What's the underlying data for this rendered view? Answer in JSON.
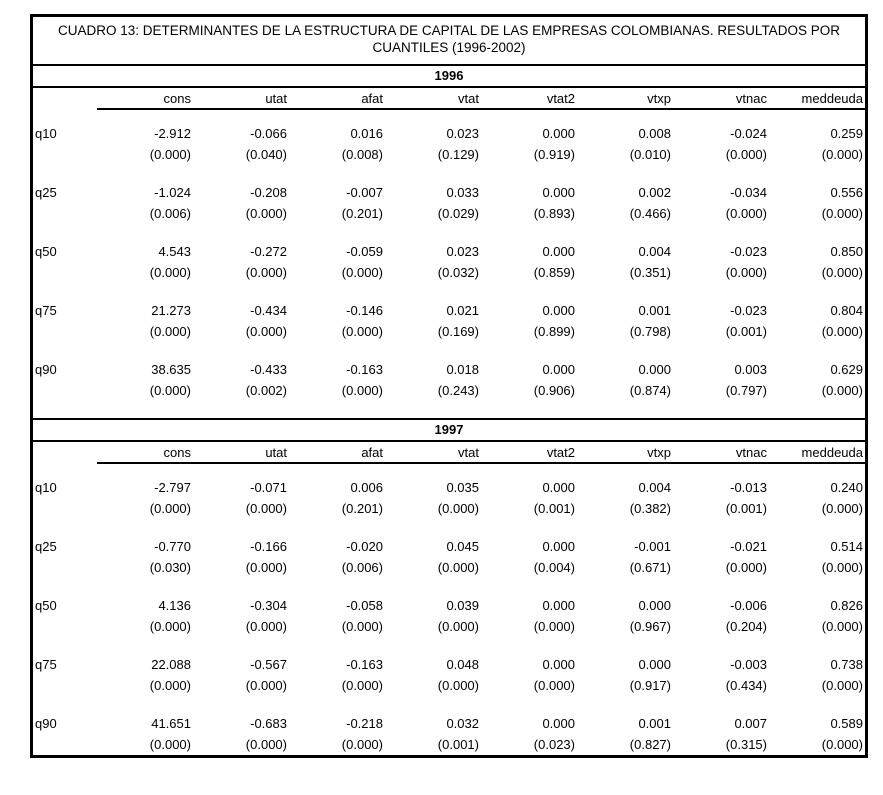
{
  "title": "CUADRO 13: DETERMINANTES DE LA ESTRUCTURA DE CAPITAL DE LAS EMPRESAS COLOMBIANAS. RESULTADOS POR CUANTILES (1996-2002)",
  "columns": [
    "",
    "cons",
    "utat",
    "afat",
    "vtat",
    "vtat2",
    "vtxp",
    "vtnac",
    "meddeuda"
  ],
  "sections": [
    {
      "year": "1996",
      "rows": [
        {
          "label": "q10",
          "coef": [
            "-2.912",
            "-0.066",
            "0.016",
            "0.023",
            "0.000",
            "0.008",
            "-0.024",
            "0.259"
          ],
          "pval": [
            "(0.000)",
            "(0.040)",
            "(0.008)",
            "(0.129)",
            "(0.919)",
            "(0.010)",
            "(0.000)",
            "(0.000)"
          ]
        },
        {
          "label": "q25",
          "coef": [
            "-1.024",
            "-0.208",
            "-0.007",
            "0.033",
            "0.000",
            "0.002",
            "-0.034",
            "0.556"
          ],
          "pval": [
            "(0.006)",
            "(0.000)",
            "(0.201)",
            "(0.029)",
            "(0.893)",
            "(0.466)",
            "(0.000)",
            "(0.000)"
          ]
        },
        {
          "label": "q50",
          "coef": [
            "4.543",
            "-0.272",
            "-0.059",
            "0.023",
            "0.000",
            "0.004",
            "-0.023",
            "0.850"
          ],
          "pval": [
            "(0.000)",
            "(0.000)",
            "(0.000)",
            "(0.032)",
            "(0.859)",
            "(0.351)",
            "(0.000)",
            "(0.000)"
          ]
        },
        {
          "label": "q75",
          "coef": [
            "21.273",
            "-0.434",
            "-0.146",
            "0.021",
            "0.000",
            "0.001",
            "-0.023",
            "0.804"
          ],
          "pval": [
            "(0.000)",
            "(0.000)",
            "(0.000)",
            "(0.169)",
            "(0.899)",
            "(0.798)",
            "(0.001)",
            "(0.000)"
          ]
        },
        {
          "label": "q90",
          "coef": [
            "38.635",
            "-0.433",
            "-0.163",
            "0.018",
            "0.000",
            "0.000",
            "0.003",
            "0.629"
          ],
          "pval": [
            "(0.000)",
            "(0.002)",
            "(0.000)",
            "(0.243)",
            "(0.906)",
            "(0.874)",
            "(0.797)",
            "(0.000)"
          ]
        }
      ]
    },
    {
      "year": "1997",
      "rows": [
        {
          "label": "q10",
          "coef": [
            "-2.797",
            "-0.071",
            "0.006",
            "0.035",
            "0.000",
            "0.004",
            "-0.013",
            "0.240"
          ],
          "pval": [
            "(0.000)",
            "(0.000)",
            "(0.201)",
            "(0.000)",
            "(0.001)",
            "(0.382)",
            "(0.001)",
            "(0.000)"
          ]
        },
        {
          "label": "q25",
          "coef": [
            "-0.770",
            "-0.166",
            "-0.020",
            "0.045",
            "0.000",
            "-0.001",
            "-0.021",
            "0.514"
          ],
          "pval": [
            "(0.030)",
            "(0.000)",
            "(0.006)",
            "(0.000)",
            "(0.004)",
            "(0.671)",
            "(0.000)",
            "(0.000)"
          ]
        },
        {
          "label": "q50",
          "coef": [
            "4.136",
            "-0.304",
            "-0.058",
            "0.039",
            "0.000",
            "0.000",
            "-0.006",
            "0.826"
          ],
          "pval": [
            "(0.000)",
            "(0.000)",
            "(0.000)",
            "(0.000)",
            "(0.000)",
            "(0.967)",
            "(0.204)",
            "(0.000)"
          ]
        },
        {
          "label": "q75",
          "coef": [
            "22.088",
            "-0.567",
            "-0.163",
            "0.048",
            "0.000",
            "0.000",
            "-0.003",
            "0.738"
          ],
          "pval": [
            "(0.000)",
            "(0.000)",
            "(0.000)",
            "(0.000)",
            "(0.000)",
            "(0.917)",
            "(0.434)",
            "(0.000)"
          ]
        },
        {
          "label": "q90",
          "coef": [
            "41.651",
            "-0.683",
            "-0.218",
            "0.032",
            "0.000",
            "0.001",
            "0.007",
            "0.589"
          ],
          "pval": [
            "(0.000)",
            "(0.000)",
            "(0.000)",
            "(0.001)",
            "(0.023)",
            "(0.827)",
            "(0.315)",
            "(0.000)"
          ]
        }
      ]
    }
  ]
}
